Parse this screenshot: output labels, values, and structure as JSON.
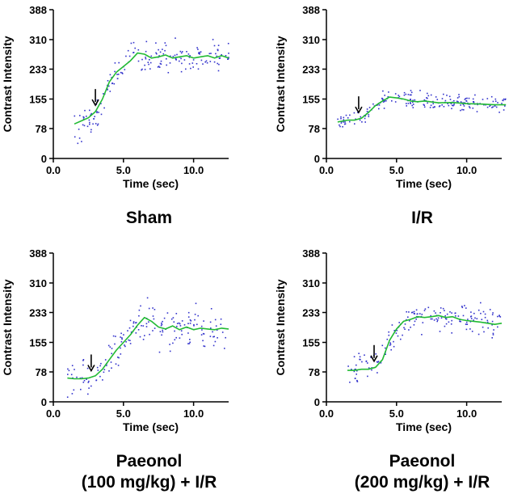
{
  "colors": {
    "fit_line": "#22bb33",
    "points": "#3333cc",
    "axis": "#000000",
    "arrow": "#000000"
  },
  "chart_data": [
    {
      "type": "scatter",
      "panel_id": "sham",
      "title_lines": [
        "Sham"
      ],
      "xlabel": "Time (sec)",
      "ylabel": "Contrast Intensity",
      "xlim": [
        0,
        12.5
      ],
      "ylim": [
        0,
        388
      ],
      "xticks": [
        0,
        5,
        10
      ],
      "xtick_labels": [
        "0.0",
        "5.0",
        "10.0"
      ],
      "yticks": [
        0,
        78,
        155,
        233,
        310,
        388
      ],
      "ytick_labels": [
        "0",
        "78",
        "155",
        "233",
        "310",
        "388"
      ],
      "arrow_x": 3.0,
      "series": [
        {
          "name": "fitted",
          "kind": "line",
          "x": [
            1.5,
            2.0,
            2.5,
            3.0,
            3.5,
            4.0,
            4.5,
            5.0,
            5.5,
            6.0,
            6.5,
            7.0,
            7.5,
            8.0,
            8.5,
            9.0,
            9.5,
            10.0,
            10.5,
            11.0,
            11.5,
            12.0,
            12.5
          ],
          "y": [
            90,
            98,
            106,
            122,
            155,
            200,
            225,
            240,
            255,
            275,
            272,
            262,
            265,
            270,
            262,
            265,
            268,
            262,
            265,
            268,
            262,
            268,
            262
          ]
        },
        {
          "name": "raw",
          "kind": "scatter",
          "x_range": [
            1.5,
            12.5
          ],
          "count": 180,
          "baseline": [
            [
              1.5,
              75
            ],
            [
              3.0,
              105
            ],
            [
              4.0,
              190
            ],
            [
              5.5,
              260
            ],
            [
              7.0,
              265
            ],
            [
              12.5,
              265
            ]
          ],
          "spread": 35
        }
      ]
    },
    {
      "type": "scatter",
      "panel_id": "ir",
      "title_lines": [
        "I/R"
      ],
      "xlabel": "Time (sec)",
      "ylabel": "Contrast Intensity",
      "xlim": [
        0,
        12.5
      ],
      "ylim": [
        0,
        388
      ],
      "xticks": [
        0,
        5,
        10
      ],
      "xtick_labels": [
        "0.0",
        "5.0",
        "10.0"
      ],
      "yticks": [
        0,
        78,
        155,
        233,
        310,
        388
      ],
      "ytick_labels": [
        "0",
        "78",
        "155",
        "233",
        "310",
        "388"
      ],
      "arrow_x": 2.3,
      "series": [
        {
          "name": "fitted",
          "kind": "line",
          "x": [
            0.8,
            1.5,
            2.0,
            2.5,
            3.0,
            3.5,
            4.0,
            4.5,
            5.0,
            5.5,
            6.0,
            6.5,
            7.0,
            8.0,
            9.0,
            10.0,
            11.0,
            12.0,
            12.8
          ],
          "y": [
            95,
            100,
            100,
            105,
            120,
            138,
            150,
            160,
            158,
            155,
            150,
            148,
            150,
            145,
            146,
            143,
            142,
            140,
            140
          ]
        },
        {
          "name": "raw",
          "kind": "scatter",
          "x_range": [
            0.8,
            12.8
          ],
          "count": 200,
          "baseline": [
            [
              0.8,
              98
            ],
            [
              2.5,
              105
            ],
            [
              4.0,
              150
            ],
            [
              5.0,
              158
            ],
            [
              7.0,
              150
            ],
            [
              12.8,
              140
            ]
          ],
          "spread": 18
        }
      ]
    },
    {
      "type": "scatter",
      "panel_id": "paeonol-100",
      "title_lines": [
        "Paeonol",
        "(100 mg/kg) + I/R"
      ],
      "xlabel": "Time (sec)",
      "ylabel": "Contrast Intensity",
      "xlim": [
        0,
        12.5
      ],
      "ylim": [
        0,
        388
      ],
      "xticks": [
        0,
        5,
        10
      ],
      "xtick_labels": [
        "0.0",
        "5.0",
        "10.0"
      ],
      "yticks": [
        0,
        78,
        155,
        233,
        310,
        388
      ],
      "ytick_labels": [
        "0",
        "78",
        "155",
        "233",
        "310",
        "388"
      ],
      "arrow_x": 2.7,
      "series": [
        {
          "name": "fitted",
          "kind": "line",
          "x": [
            1.0,
            1.5,
            2.0,
            2.5,
            3.0,
            3.5,
            4.0,
            4.5,
            5.0,
            5.5,
            6.0,
            6.5,
            7.0,
            7.5,
            8.0,
            8.5,
            9.0,
            9.5,
            10.0,
            10.5,
            11.0,
            11.5,
            12.0,
            12.5
          ],
          "y": [
            62,
            60,
            60,
            62,
            68,
            85,
            110,
            135,
            155,
            175,
            200,
            220,
            210,
            195,
            190,
            198,
            188,
            195,
            188,
            192,
            190,
            188,
            192,
            190
          ]
        },
        {
          "name": "raw",
          "kind": "scatter",
          "x_range": [
            1.0,
            12.5
          ],
          "count": 180,
          "baseline": [
            [
              1.0,
              62
            ],
            [
              3.0,
              65
            ],
            [
              4.5,
              130
            ],
            [
              6.0,
              210
            ],
            [
              7.5,
              195
            ],
            [
              12.5,
              190
            ]
          ],
          "spread": 45
        }
      ]
    },
    {
      "type": "scatter",
      "panel_id": "paeonol-200",
      "title_lines": [
        "Paeonol",
        "(200 mg/kg) + I/R"
      ],
      "xlabel": "Time (sec)",
      "ylabel": "Contrast Intensity",
      "xlim": [
        0,
        12.5
      ],
      "ylim": [
        0,
        388
      ],
      "xticks": [
        0,
        5,
        10
      ],
      "xtick_labels": [
        "0.0",
        "5.0",
        "10.0"
      ],
      "yticks": [
        0,
        78,
        155,
        233,
        310,
        388
      ],
      "ytick_labels": [
        "0",
        "78",
        "155",
        "233",
        "310",
        "388"
      ],
      "arrow_x": 3.4,
      "series": [
        {
          "name": "fitted",
          "kind": "line",
          "x": [
            1.5,
            2.0,
            2.5,
            3.0,
            3.5,
            4.0,
            4.5,
            5.0,
            5.5,
            6.0,
            6.5,
            7.0,
            7.5,
            8.0,
            8.5,
            9.0,
            9.5,
            10.0,
            10.5,
            11.0,
            11.5,
            12.0,
            12.5
          ],
          "y": [
            82,
            82,
            85,
            85,
            90,
            110,
            160,
            190,
            210,
            215,
            222,
            220,
            222,
            225,
            220,
            222,
            215,
            212,
            210,
            208,
            205,
            202,
            205
          ]
        },
        {
          "name": "raw",
          "kind": "scatter",
          "x_range": [
            1.5,
            12.5
          ],
          "count": 180,
          "baseline": [
            [
              1.5,
              82
            ],
            [
              3.5,
              88
            ],
            [
              4.5,
              160
            ],
            [
              5.5,
              215
            ],
            [
              8.0,
              225
            ],
            [
              12.5,
              200
            ]
          ],
          "spread": 32
        }
      ]
    }
  ]
}
